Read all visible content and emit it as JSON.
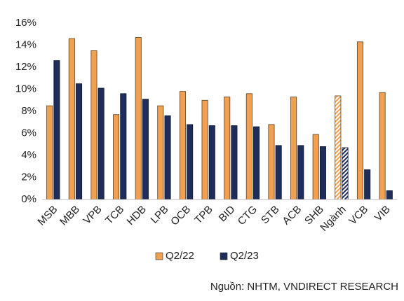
{
  "chart_data": {
    "type": "bar",
    "categories": [
      "MSB",
      "MBB",
      "VPB",
      "TCB",
      "HDB",
      "LPB",
      "OCB",
      "TPB",
      "BID",
      "CTG",
      "STB",
      "ACB",
      "SHB",
      "Ngành",
      "VCB",
      "VIB"
    ],
    "series": [
      {
        "name": "Q2/22",
        "color": "#f0a050",
        "values": [
          8.5,
          14.6,
          13.5,
          7.7,
          14.7,
          8.5,
          9.8,
          9.0,
          9.3,
          9.6,
          6.8,
          9.3,
          5.9,
          9.4,
          14.3,
          9.7
        ]
      },
      {
        "name": "Q2/23",
        "color": "#1f2d5a",
        "values": [
          12.6,
          10.5,
          10.1,
          9.6,
          9.1,
          7.6,
          6.8,
          6.7,
          6.7,
          6.6,
          4.9,
          4.9,
          4.8,
          4.7,
          2.7,
          0.8
        ]
      }
    ],
    "hatched_categories": [
      13
    ],
    "ylim": [
      0,
      16
    ],
    "yticks": [
      {
        "value": 0,
        "label": "0%"
      },
      {
        "value": 2,
        "label": "2%"
      },
      {
        "value": 4,
        "label": "4%"
      },
      {
        "value": 6,
        "label": "6%"
      },
      {
        "value": 8,
        "label": "8%"
      },
      {
        "value": 10,
        "label": "10%"
      },
      {
        "value": 12,
        "label": "12%"
      },
      {
        "value": 14,
        "label": "14%"
      },
      {
        "value": 16,
        "label": "16%"
      }
    ],
    "grid": false,
    "legend": "bottom",
    "source": "Nguồn: NHTM, VNDIRECT RESEARCH"
  }
}
